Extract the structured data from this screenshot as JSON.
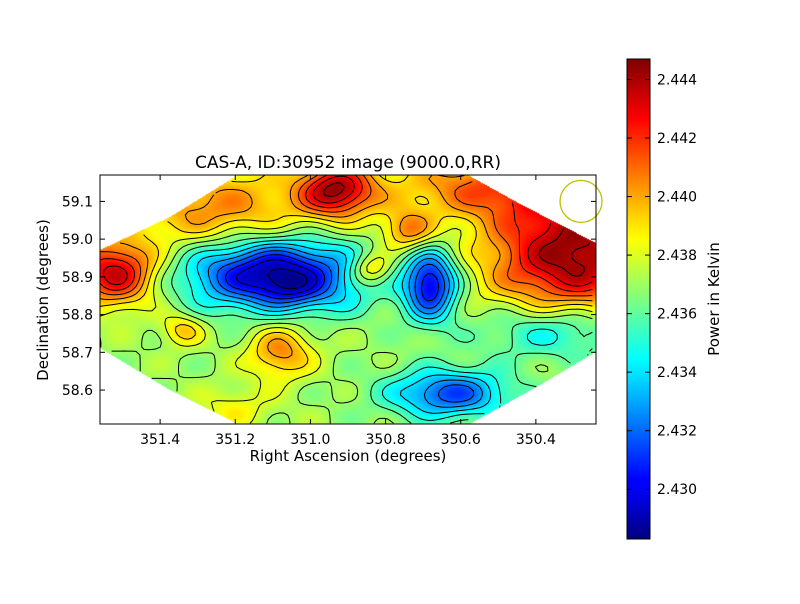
{
  "chart_data": {
    "type": "heatmap",
    "title": "CAS-A, ID:30952 image (9000.0,RR)",
    "xlabel": "Right Ascension (degrees)",
    "ylabel": "Declination (degrees)",
    "x_range": [
      351.56,
      350.24
    ],
    "y_range": [
      58.51,
      59.17
    ],
    "x_ticks": [
      351.4,
      351.2,
      351.0,
      350.8,
      350.6,
      350.4
    ],
    "y_ticks": [
      58.6,
      58.7,
      58.8,
      58.9,
      59.0,
      59.1
    ],
    "x_tick_labels": [
      "351.4",
      "351.2",
      "351.0",
      "350.8",
      "350.6",
      "350.4"
    ],
    "y_tick_labels": [
      "58.6",
      "58.7",
      "58.8",
      "58.9",
      "59.0",
      "59.1"
    ],
    "colormap": "jet",
    "colorbar": {
      "label": "Power in Kelvin",
      "vmin": 2.4283,
      "vmax": 2.4447,
      "ticks": [
        2.43,
        2.432,
        2.434,
        2.436,
        2.438,
        2.44,
        2.442,
        2.444
      ],
      "tick_labels": [
        "2.430",
        "2.432",
        "2.434",
        "2.436",
        "2.438",
        "2.440",
        "2.442",
        "2.444"
      ]
    },
    "beam_circle": {
      "ra": 350.28,
      "dec": 59.1,
      "color": "#bfbf00"
    },
    "background_level": 2.437,
    "features": [
      {
        "ra": 351.1,
        "dec": 58.91,
        "sr": 0.16,
        "sd": 0.065,
        "amp": -0.0082
      },
      {
        "ra": 351.06,
        "dec": 58.87,
        "sr": 0.05,
        "sd": 0.03,
        "amp": -0.0015
      },
      {
        "ra": 350.68,
        "dec": 58.88,
        "sr": 0.05,
        "sd": 0.065,
        "amp": -0.0072
      },
      {
        "ra": 350.63,
        "dec": 58.59,
        "sr": 0.11,
        "sd": 0.045,
        "amp": -0.0055
      },
      {
        "ra": 350.34,
        "dec": 58.76,
        "sr": 0.14,
        "sd": 0.055,
        "amp": -0.0035
      },
      {
        "ra": 350.97,
        "dec": 58.84,
        "sr": 0.1,
        "sd": 0.035,
        "amp": -0.0006
      },
      {
        "ra": 350.3,
        "dec": 58.96,
        "sr": 0.16,
        "sd": 0.12,
        "amp": 0.0075
      },
      {
        "ra": 350.5,
        "dec": 59.14,
        "sr": 0.2,
        "sd": 0.06,
        "amp": 0.004
      },
      {
        "ra": 351.52,
        "dec": 58.91,
        "sr": 0.08,
        "sd": 0.06,
        "amp": 0.0065
      },
      {
        "ra": 351.25,
        "dec": 59.08,
        "sr": 0.18,
        "sd": 0.08,
        "amp": 0.0035
      },
      {
        "ra": 350.93,
        "dec": 59.13,
        "sr": 0.07,
        "sd": 0.05,
        "amp": 0.0065
      },
      {
        "ra": 351.08,
        "dec": 58.7,
        "sr": 0.06,
        "sd": 0.05,
        "amp": 0.0035
      },
      {
        "ra": 351.34,
        "dec": 58.76,
        "sr": 0.04,
        "sd": 0.03,
        "amp": 0.0025
      },
      {
        "ra": 350.74,
        "dec": 59.02,
        "sr": 0.05,
        "sd": 0.04,
        "amp": 0.0035
      },
      {
        "ra": 350.84,
        "dec": 58.92,
        "sr": 0.04,
        "sd": 0.03,
        "amp": 0.0035
      },
      {
        "ra": 351.2,
        "dec": 58.55,
        "sr": 0.07,
        "sd": 0.04,
        "amp": 0.0015
      }
    ],
    "contour_step": 0.001,
    "grid": false
  }
}
